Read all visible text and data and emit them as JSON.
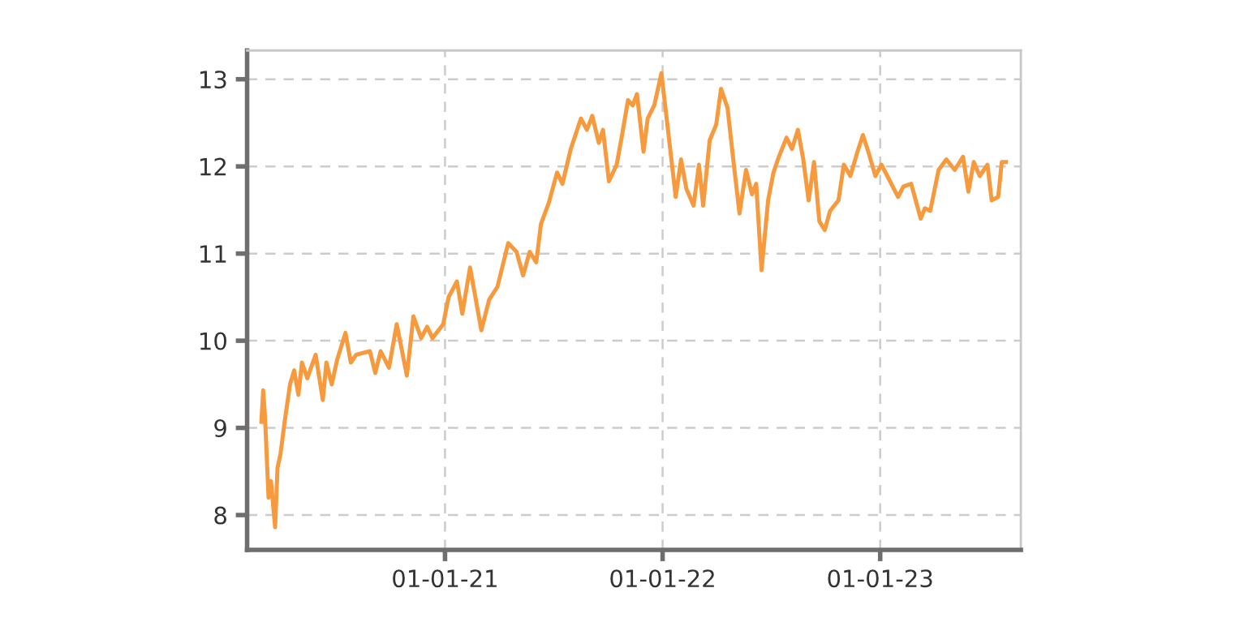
{
  "chart_data": {
    "type": "line",
    "x": [
      "2020-02-28",
      "2020-03-02",
      "2020-03-05",
      "2020-03-11",
      "2020-03-15",
      "2020-03-22",
      "2020-03-26",
      "2020-03-31",
      "2020-04-07",
      "2020-04-16",
      "2020-04-23",
      "2020-04-30",
      "2020-05-06",
      "2020-05-15",
      "2020-05-29",
      "2020-06-10",
      "2020-06-16",
      "2020-06-25",
      "2020-07-04",
      "2020-07-18",
      "2020-07-27",
      "2020-08-05",
      "2020-08-28",
      "2020-09-06",
      "2020-09-15",
      "2020-09-29",
      "2020-10-12",
      "2020-10-29",
      "2020-11-09",
      "2020-11-22",
      "2020-12-02",
      "2020-12-11",
      "2020-12-29",
      "2021-01-07",
      "2021-01-21",
      "2021-01-30",
      "2021-02-12",
      "2021-03-03",
      "2021-03-16",
      "2021-03-30",
      "2021-04-17",
      "2021-05-01",
      "2021-05-12",
      "2021-05-23",
      "2021-06-03",
      "2021-06-11",
      "2021-06-24",
      "2021-07-08",
      "2021-07-17",
      "2021-07-31",
      "2021-08-17",
      "2021-08-27",
      "2021-09-05",
      "2021-09-16",
      "2021-09-23",
      "2021-10-03",
      "2021-10-16",
      "2021-10-25",
      "2021-11-04",
      "2021-11-12",
      "2021-11-19",
      "2021-11-30",
      "2021-12-07",
      "2021-12-18",
      "2021-12-30",
      "2022-01-10",
      "2022-01-23",
      "2022-02-01",
      "2022-02-10",
      "2022-02-22",
      "2022-03-03",
      "2022-03-10",
      "2022-03-21",
      "2022-04-01",
      "2022-04-09",
      "2022-04-20",
      "2022-04-29",
      "2022-05-10",
      "2022-05-21",
      "2022-05-31",
      "2022-06-07",
      "2022-06-16",
      "2022-06-27",
      "2022-07-06",
      "2022-07-15",
      "2022-07-28",
      "2022-08-06",
      "2022-08-16",
      "2022-08-25",
      "2022-09-03",
      "2022-09-12",
      "2022-09-21",
      "2022-09-30",
      "2022-10-09",
      "2022-10-23",
      "2022-11-01",
      "2022-11-12",
      "2022-11-24",
      "2022-12-03",
      "2022-12-12",
      "2022-12-24",
      "2023-01-03",
      "2023-01-13",
      "2023-01-31",
      "2023-02-09",
      "2023-02-22",
      "2023-03-10",
      "2023-03-17",
      "2023-03-26",
      "2023-04-09",
      "2023-04-22",
      "2023-05-06",
      "2023-05-20",
      "2023-05-29",
      "2023-06-07",
      "2023-06-17",
      "2023-06-30",
      "2023-07-07",
      "2023-07-18",
      "2023-07-24",
      "2023-07-31"
    ],
    "series": [
      {
        "color": "#f79a3e",
        "values": [
          9.07,
          9.43,
          9.13,
          8.2,
          8.39,
          7.86,
          8.54,
          8.7,
          9.07,
          9.5,
          9.66,
          9.38,
          9.75,
          9.57,
          9.84,
          9.32,
          9.75,
          9.5,
          9.78,
          10.09,
          9.75,
          9.84,
          9.88,
          9.63,
          9.88,
          9.69,
          10.19,
          9.6,
          10.28,
          10.03,
          10.16,
          10.03,
          10.19,
          10.5,
          10.68,
          10.31,
          10.84,
          10.12,
          10.47,
          10.62,
          11.12,
          11.02,
          10.75,
          11.02,
          10.9,
          11.34,
          11.58,
          11.93,
          11.8,
          12.2,
          12.55,
          12.42,
          12.58,
          12.27,
          12.42,
          11.83,
          12.02,
          12.36,
          12.76,
          12.7,
          12.83,
          12.17,
          12.55,
          12.7,
          13.07,
          12.42,
          11.65,
          12.08,
          11.74,
          11.55,
          12.02,
          11.55,
          12.3,
          12.48,
          12.89,
          12.67,
          12.11,
          11.46,
          11.96,
          11.68,
          11.8,
          10.81,
          11.61,
          11.93,
          12.11,
          12.33,
          12.2,
          12.42,
          12.08,
          11.61,
          12.05,
          11.37,
          11.27,
          11.49,
          11.61,
          12.02,
          11.89,
          12.17,
          12.36,
          12.17,
          11.89,
          12.02,
          11.89,
          11.65,
          11.77,
          11.8,
          11.4,
          11.52,
          11.49,
          11.96,
          12.08,
          11.96,
          12.11,
          11.71,
          12.05,
          11.89,
          12.02,
          11.61,
          11.65,
          12.05,
          12.05
        ]
      }
    ],
    "xlim": [
      "2020-02-04",
      "2023-08-25"
    ],
    "xticks": [
      {
        "value": "2021-01-01",
        "label": "01-01-21"
      },
      {
        "value": "2022-01-01",
        "label": "01-01-22"
      },
      {
        "value": "2023-01-01",
        "label": "01-01-23"
      }
    ],
    "ylim": [
      7.6,
      13.33
    ],
    "yticks": [
      8,
      9,
      10,
      11,
      12,
      13
    ],
    "grid": true,
    "line_style": "solid",
    "marker": "none"
  }
}
